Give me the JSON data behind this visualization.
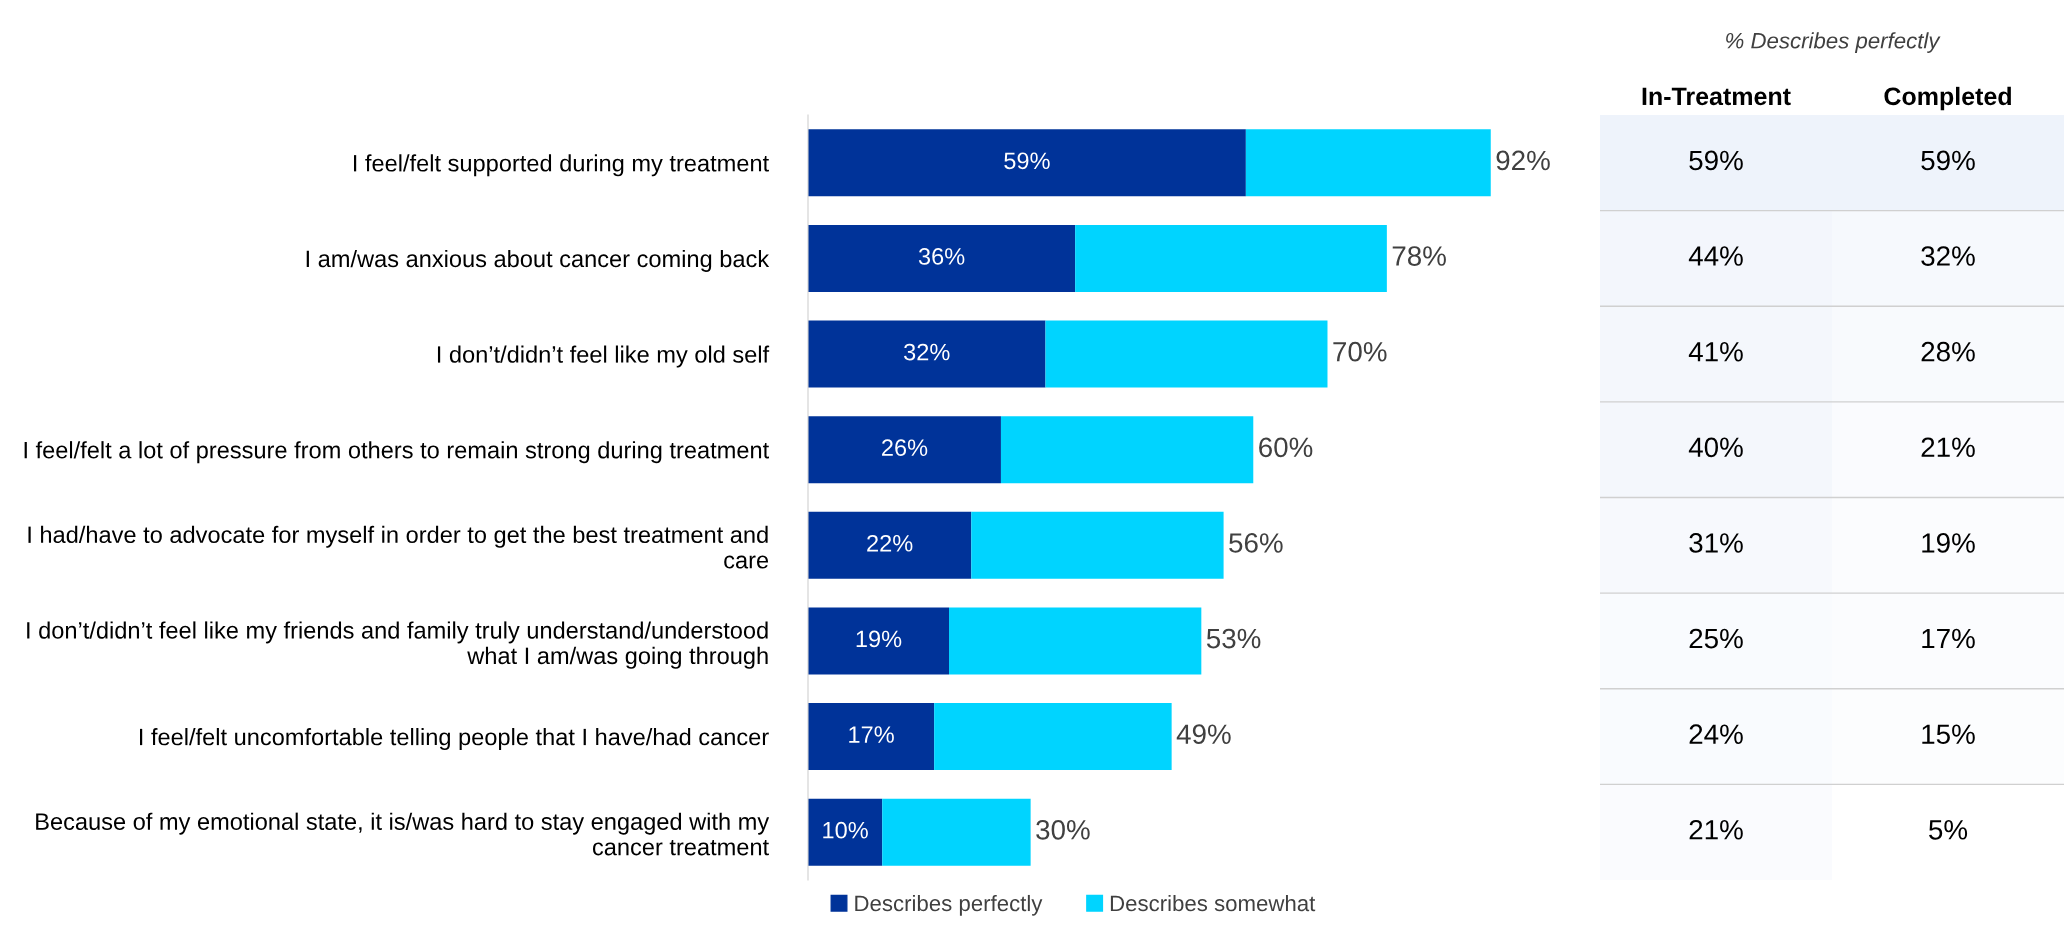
{
  "chart_data": [
    {
      "type": "bar",
      "orientation": "horizontal",
      "stacked": true,
      "legend": "bottom",
      "grid": false,
      "categories": [
        "I feel/felt supported during my treatment",
        "I am/was anxious about cancer coming back",
        "I don’t/didn’t feel like my old self",
        "I feel/felt a lot of pressure from others to remain strong during treatment",
        "I had/have to advocate for myself in order to get the best treatment and care",
        "I don’t/didn’t feel like my friends and family truly understand/understood what I am/was going through",
        "I feel/felt uncomfortable telling people that I have/had cancer",
        "Because of my emotional state, it is/was hard to stay engaged with my cancer treatment"
      ],
      "series": [
        {
          "name": "Describes perfectly",
          "color": "#003399",
          "values": [
            59,
            36,
            32,
            26,
            22,
            19,
            17,
            10
          ],
          "value_labels": [
            "59%",
            "36%",
            "32%",
            "26%",
            "22%",
            "19%",
            "17%",
            "10%"
          ]
        },
        {
          "name": "Describes somewhat",
          "color": "#00d4ff",
          "values": [
            33,
            42,
            38,
            34,
            34,
            34,
            32,
            20
          ]
        }
      ],
      "totals": [
        "92%",
        "78%",
        "70%",
        "60%",
        "56%",
        "53%",
        "49%",
        "30%"
      ]
    },
    {
      "type": "heatmap",
      "title": "% Describes perfectly",
      "categories": [
        "In-Treatment",
        "Completed"
      ],
      "y_categories": [
        null,
        null,
        null,
        null,
        null,
        null,
        null,
        null
      ],
      "cells": [
        [
          59,
          59
        ],
        [
          44,
          32
        ],
        [
          41,
          28
        ],
        [
          40,
          21
        ],
        [
          31,
          19
        ],
        [
          25,
          17
        ],
        [
          24,
          15
        ],
        [
          21,
          5
        ]
      ],
      "cell_labels": [
        [
          "59%",
          "59%"
        ],
        [
          "44%",
          "32%"
        ],
        [
          "41%",
          "28%"
        ],
        [
          "40%",
          "21%"
        ],
        [
          "31%",
          "19%"
        ],
        [
          "25%",
          "17%"
        ],
        [
          "24%",
          "15%"
        ],
        [
          "21%",
          "5%"
        ]
      ]
    }
  ]
}
